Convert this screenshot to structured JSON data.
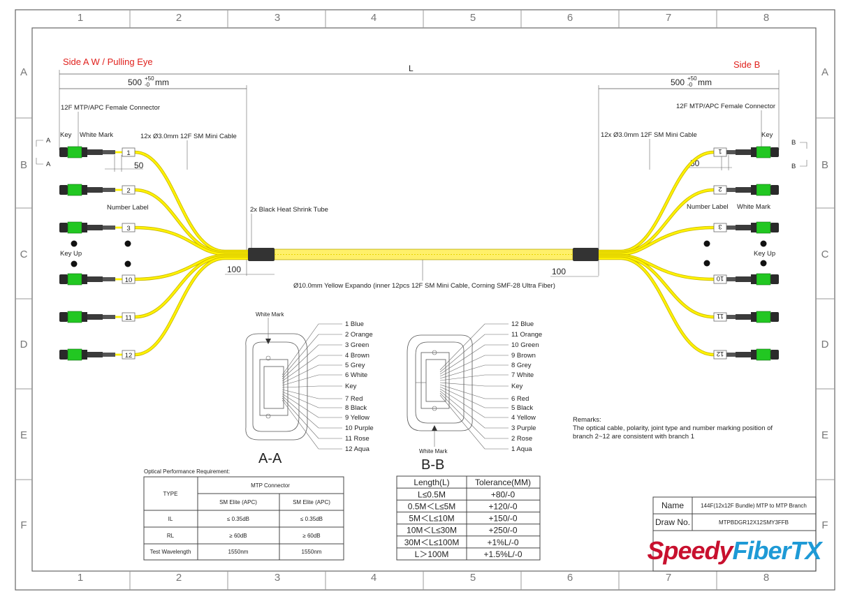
{
  "grid": {
    "columns": [
      "1",
      "2",
      "3",
      "4",
      "5",
      "6",
      "7",
      "8"
    ],
    "rows": [
      "A",
      "B",
      "C",
      "D",
      "E",
      "F"
    ]
  },
  "colors": {
    "fiber": "#fff200",
    "connector_body": "#2a2a2a",
    "connector_latch": "#22c722",
    "heading": "#e0201c",
    "logo_red": "#c8102e",
    "logo_blue": "#1e9ad6"
  },
  "side_a": {
    "title": "Side A W / Pulling Eye",
    "dim_500": "500",
    "tol_plus": "+50",
    "tol_minus": "-0",
    "unit": "mm",
    "connector_label": "12F MTP/APC Female Connector",
    "key_label": "Key",
    "white_mark_label": "White Mark",
    "mini_cable_label": "12x Ø3.0mm 12F SM Mini Cable",
    "dim_50": "50",
    "number_label": "Number Label",
    "key_up": "Key Up",
    "dim_100": "100",
    "section_marker": "A",
    "branches": [
      "1",
      "2",
      "3",
      "10",
      "11",
      "12"
    ]
  },
  "side_b": {
    "title": "Side B",
    "dim_500": "500",
    "tol_plus": "+50",
    "tol_minus": "-0",
    "unit": "mm",
    "connector_label": "12F MTP/APC Female Connector",
    "key_label": "Key",
    "white_mark_label": "White Mark",
    "mini_cable_label": "12x Ø3.0mm 12F SM Mini Cable",
    "dim_50": "50",
    "number_label": "Number Label",
    "key_up": "Key Up",
    "dim_100": "100",
    "section_marker": "B",
    "branches": [
      "1",
      "2",
      "3",
      "10",
      "11",
      "12"
    ]
  },
  "overall_length": "L",
  "heat_shrink_label": "2x Black Heat Shrink Tube",
  "trunk_label": "Ø10.0mm Yellow Expando (inner 12pcs 12F SM Mini Cable, Corning SMF-28 Ultra Fiber)",
  "section_aa": {
    "title": "A-A",
    "white_mark": "White Mark",
    "fibers": [
      "1 Blue",
      "2 Orange",
      "3 Green",
      "4 Brown",
      "5 Grey",
      "6 White",
      "Key",
      "7 Red",
      "8 Black",
      "9 Yellow",
      "10 Purple",
      "11 Rose",
      "12 Aqua"
    ]
  },
  "section_bb": {
    "title": "B-B",
    "white_mark": "White Mark",
    "fibers": [
      "12 Blue",
      "11 Orange",
      "10 Green",
      "9 Brown",
      "8 Grey",
      "7 White",
      "Key",
      "6 Red",
      "5 Black",
      "4 Yellow",
      "3 Purple",
      "2 Rose",
      "1 Aqua"
    ]
  },
  "optical_table": {
    "caption": "Optical Performance Requirement:",
    "type_header": "TYPE",
    "group_header": "MTP Connector",
    "sub_headers": [
      "SM Elite (APC)",
      "SM Elite (APC)"
    ],
    "rows": [
      {
        "label": "IL",
        "values": [
          "≤ 0.35dB",
          "≤ 0.35dB"
        ]
      },
      {
        "label": "RL",
        "values": [
          "≥ 60dB",
          "≥ 60dB"
        ]
      },
      {
        "label": "Test Wavelength",
        "values": [
          "1550nm",
          "1550nm"
        ]
      }
    ]
  },
  "tolerance_table": {
    "headers": [
      "Length(L)",
      "Tolerance(MM)"
    ],
    "rows": [
      [
        "L≤0.5M",
        "+80/-0"
      ],
      [
        "0.5M＜L≤5M",
        "+120/-0"
      ],
      [
        "5M＜L≤10M",
        "+150/-0"
      ],
      [
        "10M＜L≤30M",
        "+250/-0"
      ],
      [
        "30M＜L≤100M",
        "+1%L/-0"
      ],
      [
        "L＞100M",
        "+1.5%L/-0"
      ]
    ]
  },
  "remarks": {
    "title": "Remarks:",
    "line1": "The optical cable, polarity, joint type and number marking position of",
    "line2": "branch 2~12 are consistent with branch 1"
  },
  "title_block": {
    "name_label": "Name",
    "name_value": "144F(12x12F Bundle) MTP to MTP Branch",
    "draw_label": "Draw No.",
    "draw_value": "MTPBDGR12X12SMY3FFB",
    "logo_part1": "Speedy",
    "logo_part2": "FiberTX"
  }
}
